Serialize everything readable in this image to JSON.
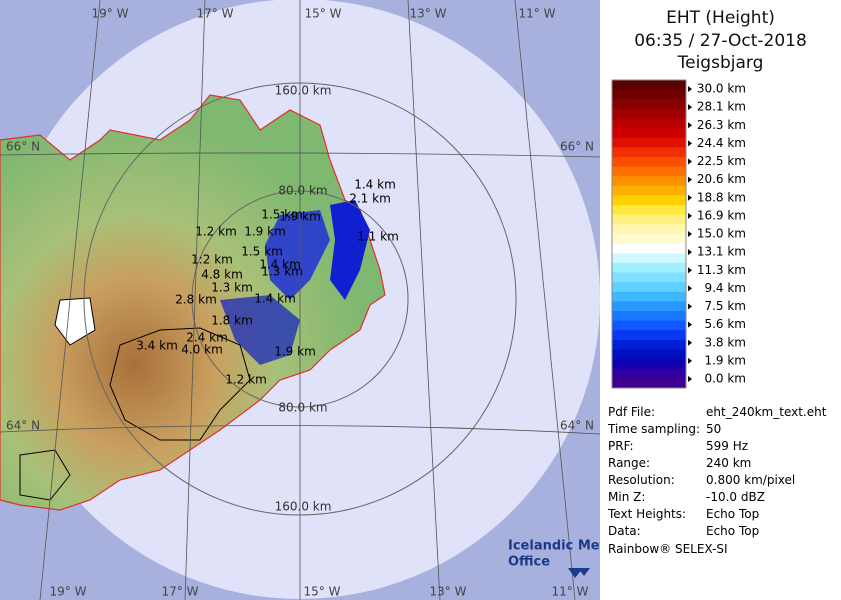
{
  "header": {
    "product": "EHT (Height)",
    "time": "06:35 / 27-Oct-2018",
    "site": "Teigsbjarg"
  },
  "map": {
    "longitudes_top": [
      "19° W",
      "17° W",
      "15° W",
      "13° W",
      "11° W"
    ],
    "longitudes_bottom": [
      "19° W",
      "17° W",
      "15° W",
      "13° W",
      "11° W"
    ],
    "latitudes_left": [
      "66° N",
      "64° N"
    ],
    "latitudes_right": [
      "66° N",
      "64° N"
    ],
    "ring_labels": [
      "160.0 km",
      "80.0 km",
      "80.0 km",
      "160.0 km"
    ],
    "echo_top_labels": [
      "1.4 km",
      "2.1 km",
      "1.1 km",
      "1.5 km",
      "1.9 km",
      "1.2 km",
      "1.9 km",
      "1.5 km",
      "1.4 km",
      "1.3 km",
      "1:2 km",
      "4.8 km",
      "1.3 km",
      "2.8 km",
      "1.4 km",
      "1.8 km",
      "2.4 km",
      "3.4 km",
      "4.0 km",
      "1.9 km",
      "1.2 km"
    ]
  },
  "colorbar": {
    "labels": [
      "30.0 km",
      "28.1 km",
      "26.3 km",
      "24.4 km",
      "22.5 km",
      "20.6 km",
      "18.8 km",
      "16.9 km",
      "15.0 km",
      "13.1 km",
      "11.3 km",
      "9.4 km",
      "7.5 km",
      "5.6 km",
      "3.8 km",
      "1.9 km",
      "0.0 km"
    ],
    "colors": [
      "#5a0000",
      "#700000",
      "#880000",
      "#a00000",
      "#b80000",
      "#cc0000",
      "#e01000",
      "#f03000",
      "#f85000",
      "#fc7000",
      "#fd9000",
      "#feb000",
      "#ffd000",
      "#ffe840",
      "#fff080",
      "#fff8b0",
      "#fffad0",
      "#ffffff",
      "#d0f8ff",
      "#a0f0ff",
      "#80e0ff",
      "#60d0ff",
      "#40b8ff",
      "#2898ff",
      "#1878ff",
      "#1058ff",
      "#0838f0",
      "#0020d8",
      "#0010c0",
      "#1000b0",
      "#3000a0",
      "#400090"
    ]
  },
  "metadata": [
    [
      "Pdf File:",
      "eht_240km_text.eht"
    ],
    [
      "Time sampling:",
      "50"
    ],
    [
      "PRF:",
      "599 Hz"
    ],
    [
      "Range:",
      "240 km"
    ],
    [
      "Resolution:",
      "0.800 km/pixel"
    ],
    [
      "Min Z:",
      "-10.0 dBZ"
    ],
    [
      "Text Heights:",
      "Echo Top"
    ],
    [
      "Data:",
      "Echo Top"
    ]
  ],
  "footer": "Rainbow® SELEX-SI",
  "logo": {
    "line1": "Icelandic Met",
    "line2": "Office"
  }
}
